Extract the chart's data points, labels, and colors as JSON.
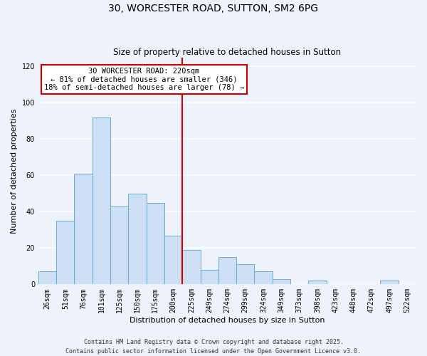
{
  "title": "30, WORCESTER ROAD, SUTTON, SM2 6PG",
  "subtitle": "Size of property relative to detached houses in Sutton",
  "xlabel": "Distribution of detached houses by size in Sutton",
  "ylabel": "Number of detached properties",
  "bar_labels": [
    "26sqm",
    "51sqm",
    "76sqm",
    "101sqm",
    "125sqm",
    "150sqm",
    "175sqm",
    "200sqm",
    "225sqm",
    "249sqm",
    "274sqm",
    "299sqm",
    "324sqm",
    "349sqm",
    "373sqm",
    "398sqm",
    "423sqm",
    "448sqm",
    "472sqm",
    "497sqm",
    "522sqm"
  ],
  "bar_values": [
    7,
    35,
    61,
    92,
    43,
    50,
    45,
    27,
    19,
    8,
    15,
    11,
    7,
    3,
    0,
    2,
    0,
    0,
    0,
    2,
    0
  ],
  "bar_color": "#ccdff4",
  "bar_edge_color": "#6aaad4",
  "vline_color": "#cc0000",
  "annotation_text": "30 WORCESTER ROAD: 220sqm\n← 81% of detached houses are smaller (346)\n18% of semi-detached houses are larger (78) →",
  "annotation_box_color": "#ffffff",
  "annotation_box_edge": "#cc0000",
  "ylim": [
    0,
    125
  ],
  "yticks": [
    0,
    20,
    40,
    60,
    80,
    100,
    120
  ],
  "footer1": "Contains HM Land Registry data © Crown copyright and database right 2025.",
  "footer2": "Contains public sector information licensed under the Open Government Licence v3.0.",
  "bg_color": "#eef2fa",
  "grid_color": "#ffffff",
  "title_fontsize": 10,
  "subtitle_fontsize": 8.5,
  "label_fontsize": 8,
  "tick_fontsize": 7,
  "annot_fontsize": 7.5,
  "footer_fontsize": 6
}
